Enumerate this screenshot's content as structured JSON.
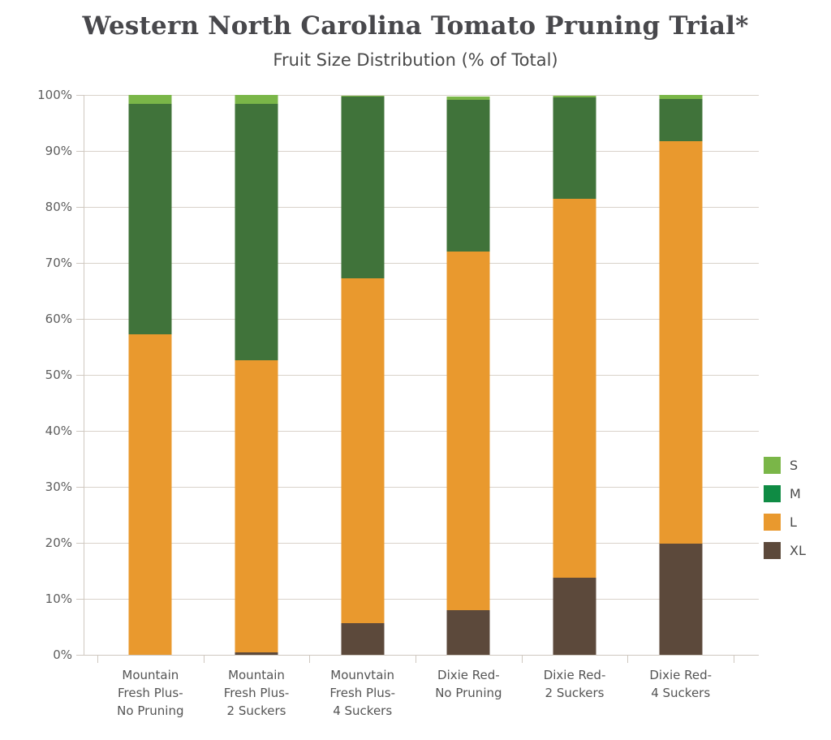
{
  "chart_data": {
    "type": "bar",
    "stacked": true,
    "title": "Western North Carolina Tomato Pruning Trial*",
    "subtitle": "Fruit Size Distribution (% of Total)",
    "categories": [
      "Mountain Fresh Plus- No Pruning",
      "Mountain Fresh Plus- 2 Suckers",
      "Mounvtain Fresh Plus- 4 Suckers",
      "Dixie Red- No Pruning",
      "Dixie Red- 2 Suckers",
      "Dixie Red- 4 Suckers"
    ],
    "category_lines": [
      [
        "Mountain",
        "Fresh Plus-",
        "No Pruning"
      ],
      [
        "Mountain",
        "Fresh Plus-",
        "2 Suckers"
      ],
      [
        "Mounvtain",
        "Fresh Plus-",
        "4 Suckers"
      ],
      [
        "Dixie Red-",
        "No Pruning"
      ],
      [
        "Dixie Red-",
        "2 Suckers"
      ],
      [
        "Dixie Red-",
        "4 Suckers"
      ]
    ],
    "series": [
      {
        "name": "S",
        "bar_color": "#7ab648",
        "legend_color": "#7ab648",
        "values": [
          1.6,
          1.6,
          0.2,
          0.5,
          0.3,
          0.7
        ]
      },
      {
        "name": "M",
        "bar_color": "#40733a",
        "legend_color": "#0f8b44",
        "values": [
          41.2,
          45.8,
          32.4,
          27.2,
          18.1,
          7.6
        ]
      },
      {
        "name": "L",
        "bar_color": "#e9992e",
        "legend_color": "#e9992e",
        "values": [
          57.2,
          52.2,
          61.7,
          64.0,
          67.7,
          71.9
        ]
      },
      {
        "name": "XL",
        "bar_color": "#5c493b",
        "legend_color": "#5c493b",
        "values": [
          0,
          0.4,
          5.6,
          8.0,
          13.7,
          19.8
        ]
      }
    ],
    "ylim": [
      0,
      100
    ],
    "yticks": [
      "100%",
      "90%",
      "80%",
      "70%",
      "60%",
      "50%",
      "40%",
      "30%",
      "20%",
      "10%",
      "0%"
    ],
    "grid": true,
    "legend_position": "right",
    "colors": {
      "s_green": "#7ab648",
      "m_green_bar": "#40733a",
      "m_green_legend": "#0f8b44",
      "l_orange": "#e9992e",
      "xl_brown": "#5c493b",
      "gridline": "#d9d2ca",
      "axis": "#cfc8c0",
      "title_text": "#48484c",
      "subtitle_text": "#4a4a4a"
    }
  }
}
